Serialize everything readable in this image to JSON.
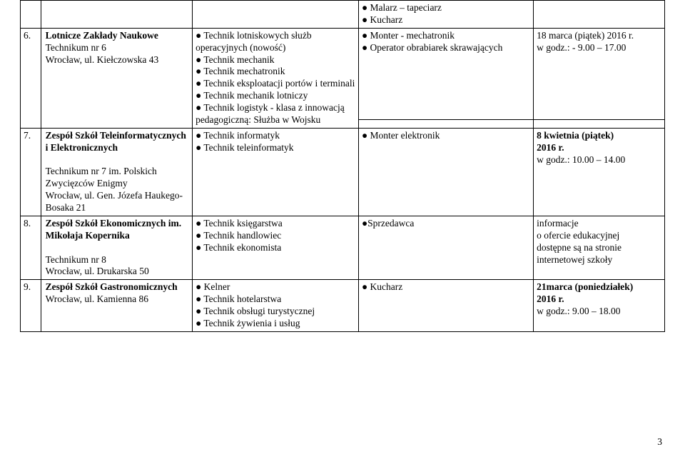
{
  "header_row": {
    "col3_items": [
      "Malarz – tapeciarz",
      "Kucharz"
    ]
  },
  "rows": [
    {
      "num": "6.",
      "name_bold": "Lotnicze Zakłady Naukowe",
      "name_lines": [
        "Technikum nr 6",
        "Wrocław, ul. Kiełczowska 43"
      ],
      "tech_items": [
        "Technik lotniskowych służb operacyjnych (nowość)",
        "Technik mechanik",
        "Technik mechatronik",
        "Technik eksploatacji portów i terminali",
        "Technik mechanik lotniczy",
        "Technik logistyk - klasa z innowacją pedagogiczną: Służba w Wojsku"
      ],
      "zaw_items": [
        "Monter - mechatronik",
        "Operator obrabiarek skrawających"
      ],
      "date_lines": [
        "18 marca (piątek) 2016 r.",
        "w godz.: - 9.00 – 17.00"
      ]
    },
    {
      "num": "7.",
      "name_bold": "Zespół Szkół Teleinformatycznych i Elektronicznych",
      "name_lines_extra": [
        "",
        "Technikum nr 7 im. Polskich Zwycięzców Enigmy",
        "Wrocław, ul. Gen. Józefa Haukego-Bosaka 21"
      ],
      "tech_items": [
        "Technik informatyk",
        "Technik teleinformatyk"
      ],
      "zaw_items": [
        "Monter elektronik"
      ],
      "date_lines": [
        "8 kwietnia (piątek)",
        "2016 r.",
        "w godz.: 10.00 – 14.00"
      ]
    },
    {
      "num": "8.",
      "name_bold": "Zespół Szkół Ekonomicznych im. Mikołaja Kopernika",
      "name_lines": [
        "",
        "Technikum nr 8",
        "Wrocław, ul. Drukarska 50"
      ],
      "tech_items": [
        "Technik księgarstwa",
        "Technik handlowiec",
        "Technik ekonomista"
      ],
      "zaw_items_nospace": [
        "Sprzedawca"
      ],
      "date_lines_plain": [
        "informacje",
        "o ofercie edukacyjnej",
        "dostępne są na stronie",
        "internetowej szkoły"
      ]
    },
    {
      "num": "9.",
      "name_bold": "Zespół Szkół Gastronomicznych",
      "name_lines_inline": [
        "Wrocław, ul. Kamienna 86"
      ],
      "tech_items": [
        "Kelner",
        "Technik hotelarstwa",
        "Technik obsługi turystycznej",
        "Technik żywienia i usług"
      ],
      "zaw_items": [
        "Kucharz"
      ],
      "date_lines": [
        "21marca (poniedziałek)",
        "2016 r.",
        "w godz.: 9.00 – 18.00"
      ]
    }
  ],
  "page_number": "3"
}
